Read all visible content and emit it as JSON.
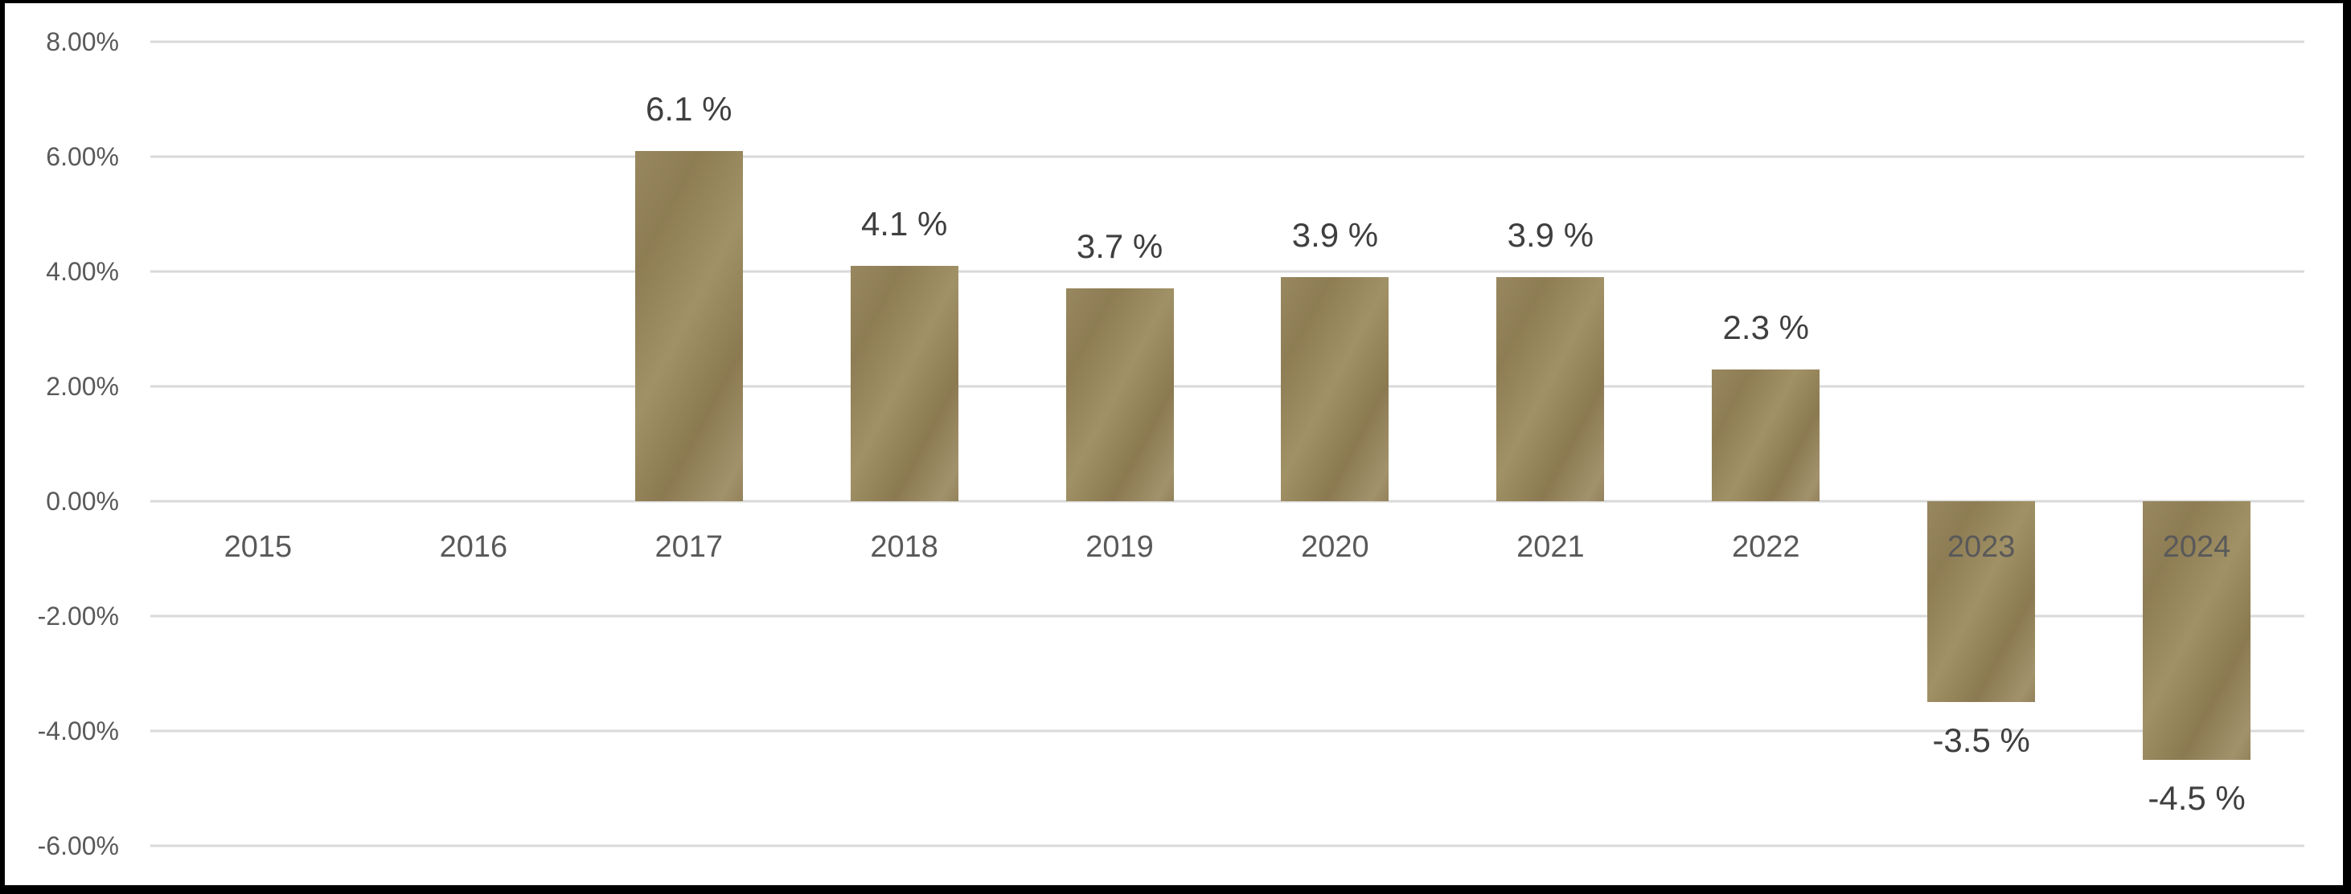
{
  "chart_data": {
    "type": "bar",
    "categories": [
      "2015",
      "2016",
      "2017",
      "2018",
      "2019",
      "2020",
      "2021",
      "2022",
      "2023",
      "2024"
    ],
    "values": [
      null,
      null,
      6.1,
      4.1,
      3.7,
      3.9,
      3.9,
      2.3,
      -3.5,
      -4.5
    ],
    "data_labels": [
      "",
      "",
      "6.1 %",
      "4.1 %",
      "3.7 %",
      "3.9 %",
      "3.9 %",
      "2.3 %",
      "-3.5 %",
      "-4.5 %"
    ],
    "title": "",
    "xlabel": "",
    "ylabel": "",
    "ylim": [
      -6,
      8
    ],
    "y_ticks": [
      8,
      6,
      4,
      2,
      0,
      -2,
      -4,
      -6
    ],
    "y_tick_labels": [
      "8.00%",
      "6.00%",
      "4.00%",
      "2.00%",
      "0.00%",
      "-2.00%",
      "-4.00%",
      "-6.00%"
    ],
    "grid": true,
    "legend": false,
    "series_name": "",
    "bar_gradient_colors": [
      "#98875f",
      "#8e7d54",
      "#a19166",
      "#8b7a51",
      "#a2926c"
    ],
    "gridline_color": "#d9d9d9",
    "axis_tick_color": "#595959",
    "category_label_color": "#595959",
    "data_label_color": "#3f3f3f",
    "frame_border_color": "#000000",
    "background_color": "#ffffff"
  }
}
